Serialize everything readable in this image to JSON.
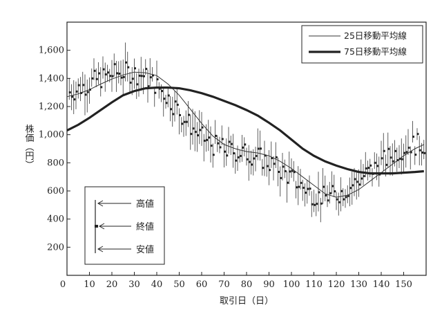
{
  "chart_data": {
    "type": "line",
    "xlabel": "取引日（日）",
    "ylabel": "株価（円）",
    "xlim": [
      0,
      160
    ],
    "ylim": [
      0,
      1800
    ],
    "x_ticks": [
      0,
      10,
      20,
      30,
      40,
      50,
      60,
      70,
      80,
      90,
      100,
      110,
      120,
      130,
      140,
      150
    ],
    "y_ticks": [
      200,
      400,
      600,
      800,
      "1,000",
      "1,200",
      "1,400",
      "1,600"
    ],
    "y_tick_values": [
      200,
      400,
      600,
      800,
      1000,
      1200,
      1400,
      1600
    ],
    "grid": false,
    "legend_position": "top-right",
    "series": [
      {
        "name": "25日移動平均線",
        "style": "thin",
        "x": [
          0,
          5,
          10,
          15,
          20,
          25,
          30,
          35,
          40,
          45,
          50,
          55,
          60,
          65,
          70,
          75,
          80,
          85,
          90,
          95,
          100,
          105,
          110,
          115,
          120,
          125,
          130,
          135,
          140,
          145,
          150,
          155,
          159
        ],
        "values": [
          1270,
          1290,
          1320,
          1360,
          1395,
          1425,
          1445,
          1440,
          1420,
          1360,
          1280,
          1180,
          1080,
          990,
          930,
          900,
          880,
          870,
          850,
          810,
          760,
          700,
          640,
          580,
          555,
          570,
          610,
          670,
          730,
          790,
          850,
          900,
          930
        ]
      },
      {
        "name": "75日移動平均線",
        "style": "thick",
        "x": [
          0,
          5,
          10,
          15,
          20,
          25,
          30,
          35,
          40,
          45,
          50,
          55,
          60,
          65,
          70,
          75,
          80,
          85,
          90,
          95,
          100,
          105,
          110,
          115,
          120,
          125,
          130,
          135,
          140,
          145,
          150,
          155,
          159
        ],
        "values": [
          1030,
          1070,
          1120,
          1175,
          1230,
          1280,
          1310,
          1330,
          1335,
          1335,
          1330,
          1315,
          1295,
          1270,
          1240,
          1210,
          1175,
          1135,
          1085,
          1030,
          965,
          900,
          850,
          810,
          780,
          755,
          735,
          725,
          725,
          725,
          730,
          735,
          740
        ]
      }
    ],
    "ohlc_key": {
      "high_label": "高値",
      "close_label": "終値",
      "low_label": "安値"
    }
  }
}
